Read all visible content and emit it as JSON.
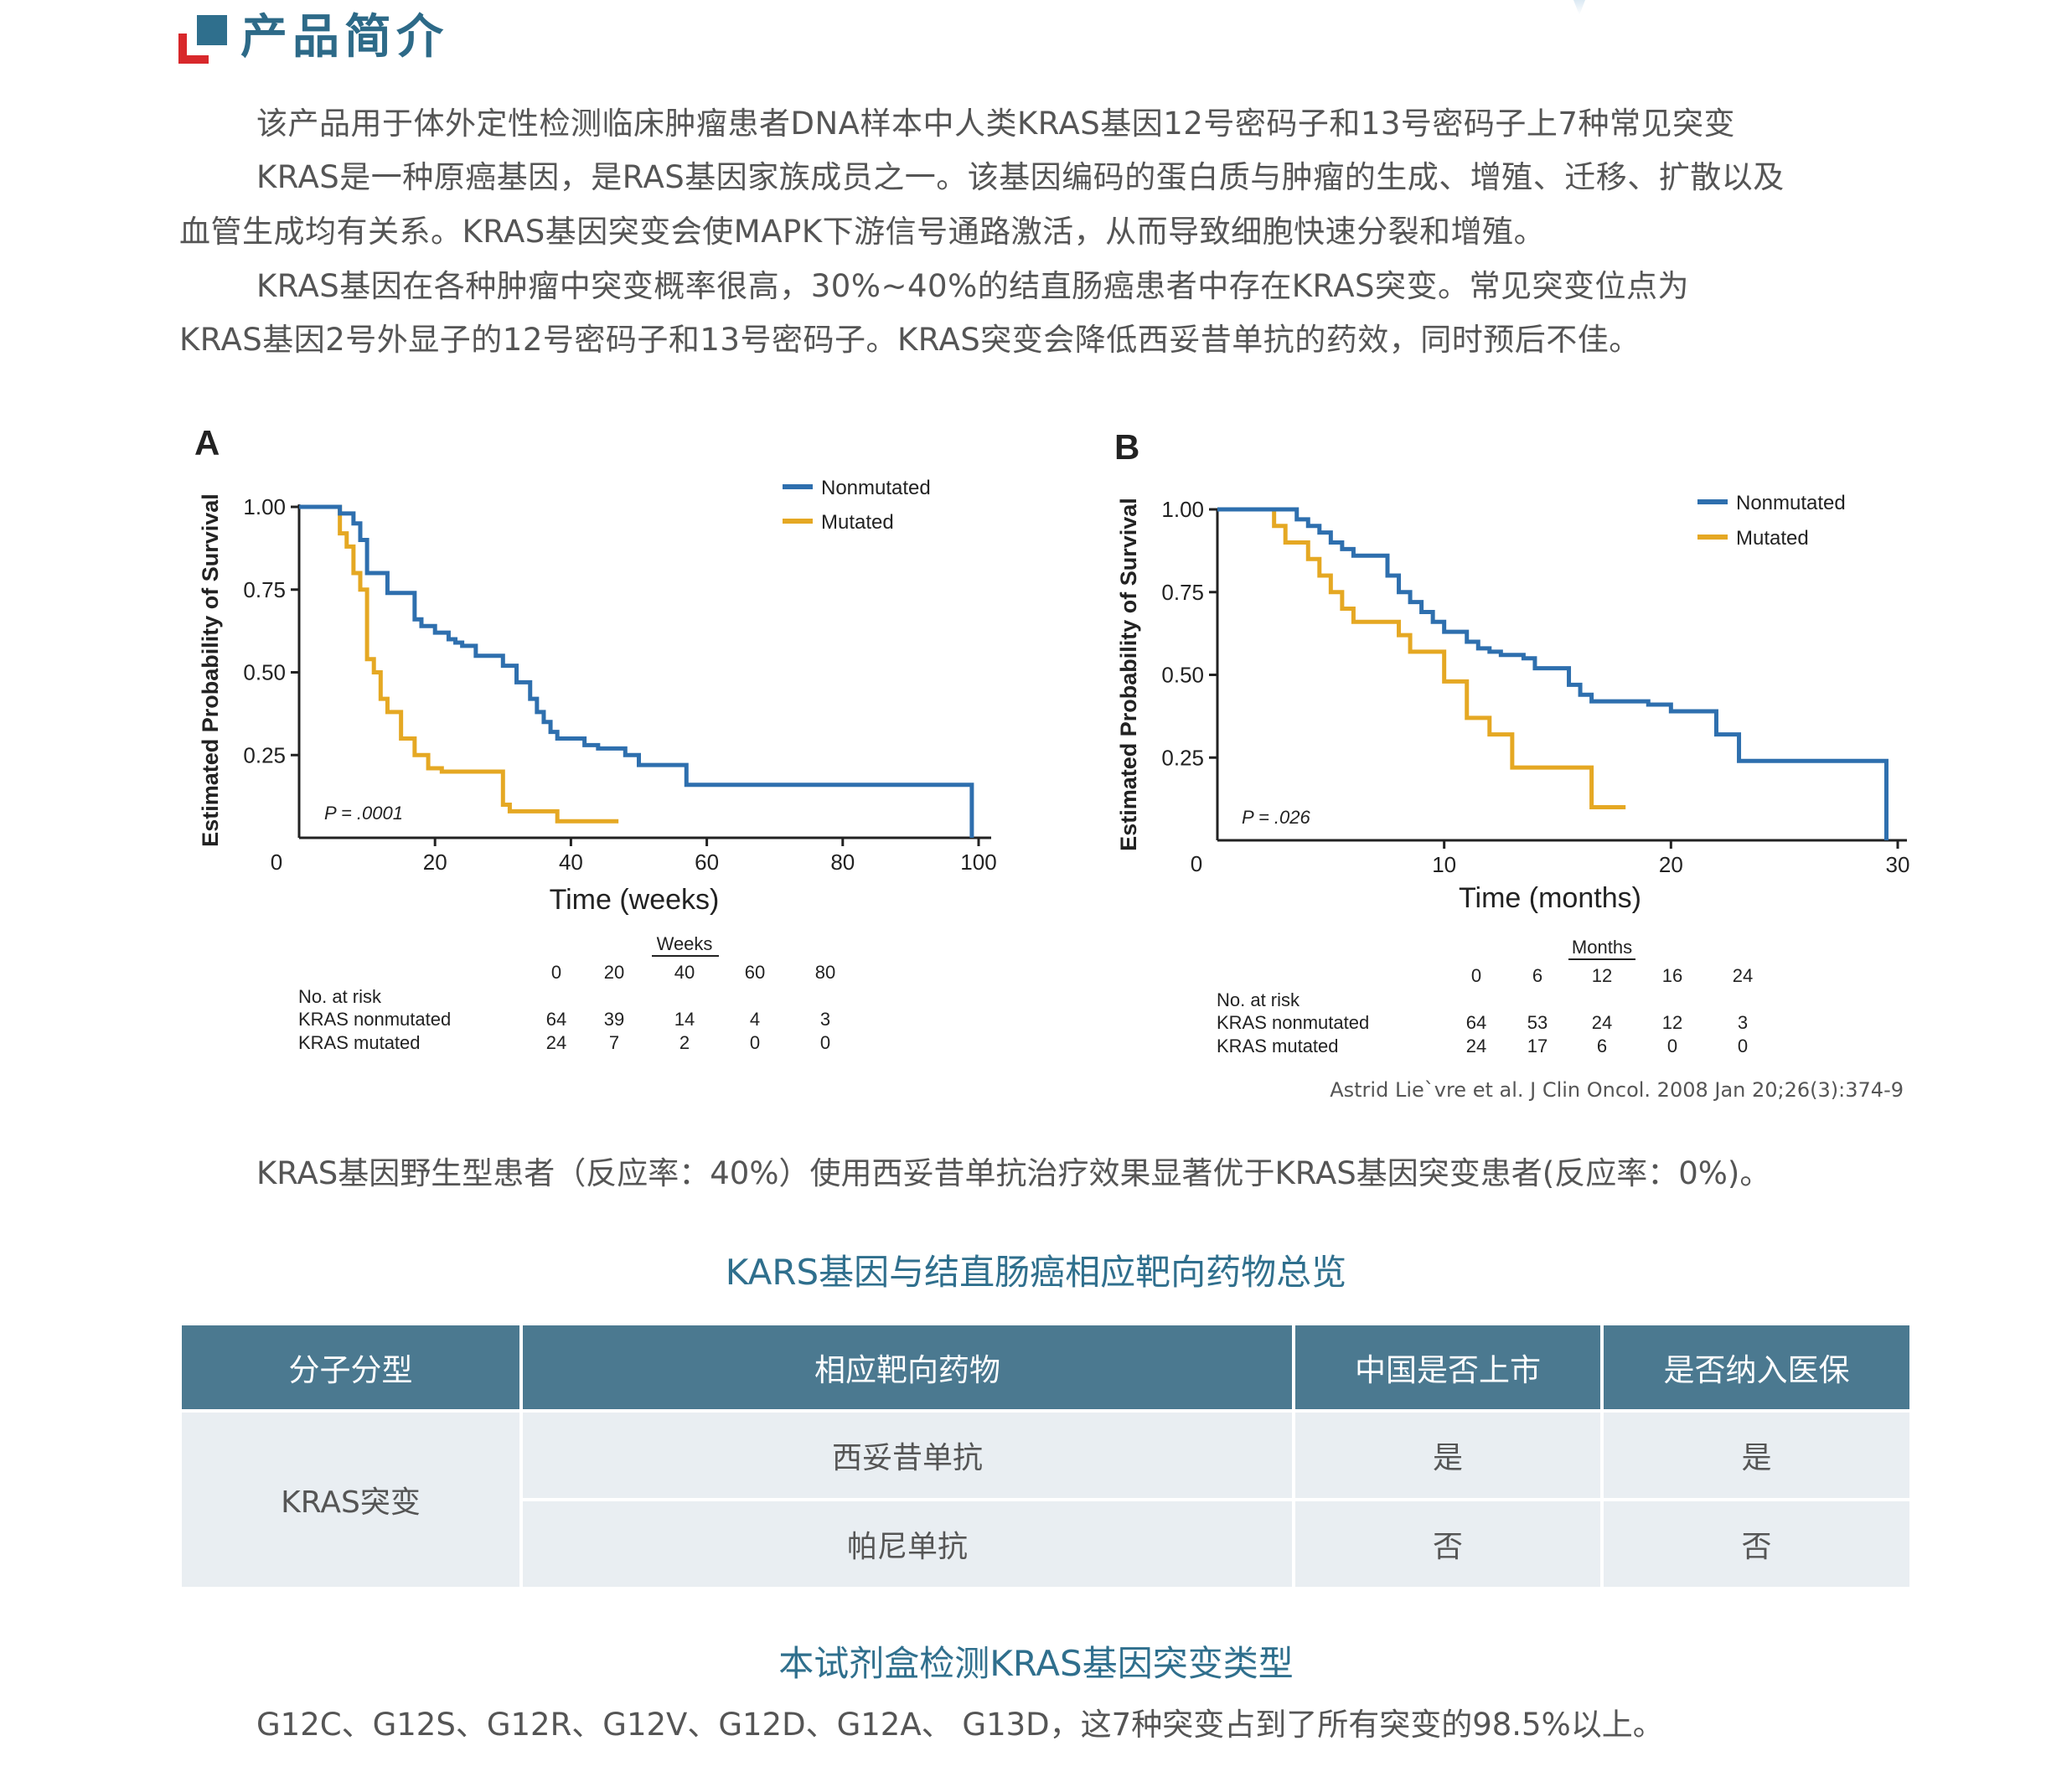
{
  "header": {
    "title": "产品简介",
    "logo_icon": "red-blue-squares-logo",
    "colors": {
      "title": "#2d6a88",
      "accent_red": "#d8282b",
      "accent_blue": "#2f6f8d"
    }
  },
  "paragraphs": {
    "p1": "该产品用于体外定性检测临床肿瘤患者DNA样本中人类KRAS基因12号密码子和13号密码子上7种常见突变",
    "p2_line1": "KRAS是一种原癌基因，是RAS基因家族成员之一。该基因编码的蛋白质与肿瘤的生成、增殖、迁移、扩散以及",
    "p2_line2": "血管生成均有关系。KRAS基因突变会使MAPK下游信号通路激活，从而导致细胞快速分裂和增殖。",
    "p3_line1": "KRAS基因在各种肿瘤中突变概率很高，30%~40%的结直肠癌患者中存在KRAS突变。常见突变位点为",
    "p3_line2": "KRAS基因2号外显子的12号密码子和13号密码子。KRAS突变会降低西妥昔单抗的药效，同时预后不佳。"
  },
  "figure": {
    "colors": {
      "nonmutated": "#2e6fae",
      "mutated": "#e5a823"
    },
    "panel_a": {
      "label": "A",
      "ylabel": "Estimated Probability of Survival",
      "xlabel": "Time (weeks)",
      "y_ticks": [
        "1.00",
        "0.75",
        "0.50",
        "0.25",
        "0"
      ],
      "x_ticks": [
        "20",
        "40",
        "60",
        "80",
        "100"
      ],
      "p_value": "P = .0001",
      "legend": {
        "nonmutated": "Nonmutated",
        "mutated": "Mutated"
      },
      "risk_table": {
        "unit": "Weeks",
        "times": [
          "0",
          "20",
          "40",
          "60",
          "80"
        ],
        "title": "No. at risk",
        "row1_label": "KRAS nonmutated",
        "row1": [
          "64",
          "39",
          "14",
          "4",
          "3"
        ],
        "row2_label": "KRAS mutated",
        "row2": [
          "24",
          "7",
          "2",
          "0",
          "0"
        ]
      }
    },
    "panel_b": {
      "label": "B",
      "ylabel": "Estimated Probability of Survival",
      "xlabel": "Time (months)",
      "y_ticks": [
        "1.00",
        "0.75",
        "0.50",
        "0.25",
        "0"
      ],
      "x_ticks": [
        "10",
        "20",
        "30"
      ],
      "p_value": "P = .026",
      "legend": {
        "nonmutated": "Nonmutated",
        "mutated": "Mutated"
      },
      "risk_table": {
        "unit": "Months",
        "times": [
          "0",
          "6",
          "12",
          "16",
          "24"
        ],
        "title": "No. at risk",
        "row1_label": "KRAS nonmutated",
        "row1": [
          "64",
          "53",
          "24",
          "12",
          "3"
        ],
        "row2_label": "KRAS mutated",
        "row2": [
          "24",
          "17",
          "6",
          "0",
          "0"
        ]
      }
    },
    "citation": "Astrid Lie`vre et al. J Clin Oncol. 2008 Jan 20;26(3):374-9"
  },
  "chart_data": [
    {
      "type": "line",
      "title": "A",
      "xlabel": "Time (weeks)",
      "ylabel": "Estimated Probability of Survival",
      "xlim": [
        0,
        100
      ],
      "ylim": [
        0,
        1
      ],
      "series": [
        {
          "name": "Nonmutated",
          "x": [
            0,
            5,
            6,
            8,
            9,
            10,
            12,
            13,
            14,
            17,
            18,
            20,
            22,
            23,
            24,
            26,
            28,
            30,
            32,
            34,
            35,
            36,
            37,
            38,
            40,
            42,
            44,
            48,
            50,
            55,
            57,
            60,
            70,
            80,
            90,
            99,
            99
          ],
          "y": [
            1.0,
            1.0,
            0.98,
            0.95,
            0.9,
            0.8,
            0.8,
            0.74,
            0.74,
            0.66,
            0.64,
            0.62,
            0.6,
            0.59,
            0.58,
            0.55,
            0.55,
            0.52,
            0.47,
            0.42,
            0.38,
            0.35,
            0.32,
            0.3,
            0.3,
            0.28,
            0.27,
            0.25,
            0.22,
            0.22,
            0.16,
            0.16,
            0.16,
            0.16,
            0.16,
            0.16,
            0
          ]
        },
        {
          "name": "Mutated",
          "x": [
            0,
            5,
            6,
            7,
            8,
            9,
            10,
            11,
            12,
            13,
            15,
            17,
            19,
            21,
            30,
            31,
            38,
            42,
            47
          ],
          "y": [
            1.0,
            1.0,
            0.92,
            0.88,
            0.8,
            0.75,
            0.54,
            0.5,
            0.42,
            0.38,
            0.3,
            0.25,
            0.21,
            0.2,
            0.1,
            0.08,
            0.05,
            0.05,
            0.05
          ]
        }
      ]
    },
    {
      "type": "line",
      "title": "B",
      "xlabel": "Time (months)",
      "ylabel": "Estimated Probability of Survival",
      "xlim": [
        0,
        30
      ],
      "ylim": [
        0,
        1
      ],
      "series": [
        {
          "name": "Nonmutated",
          "x": [
            0,
            3,
            3.5,
            4,
            4.5,
            5,
            5.5,
            6,
            7,
            7.5,
            8,
            8.5,
            9,
            9.5,
            10,
            11,
            11.5,
            12,
            12.5,
            13.5,
            14,
            15.5,
            16,
            16.5,
            17,
            18,
            19,
            20,
            21,
            22,
            22,
            23,
            25,
            27,
            29.5,
            29.5
          ],
          "y": [
            1.0,
            1.0,
            0.97,
            0.95,
            0.93,
            0.9,
            0.88,
            0.86,
            0.86,
            0.8,
            0.75,
            0.72,
            0.69,
            0.66,
            0.63,
            0.6,
            0.58,
            0.57,
            0.56,
            0.55,
            0.52,
            0.47,
            0.44,
            0.42,
            0.42,
            0.42,
            0.41,
            0.39,
            0.39,
            0.36,
            0.32,
            0.24,
            0.24,
            0.24,
            0.24,
            0
          ]
        },
        {
          "name": "Mutated",
          "x": [
            0,
            2,
            2.5,
            3,
            4,
            4.5,
            5,
            5.5,
            6,
            7,
            8,
            8.5,
            9,
            10,
            11,
            12,
            13,
            14,
            16,
            16.5,
            18
          ],
          "y": [
            1.0,
            1.0,
            0.95,
            0.9,
            0.85,
            0.8,
            0.75,
            0.7,
            0.66,
            0.66,
            0.62,
            0.57,
            0.57,
            0.48,
            0.37,
            0.32,
            0.22,
            0.22,
            0.22,
            0.1,
            0.1
          ]
        }
      ]
    }
  ],
  "result_text": "KRAS基因野生型患者（反应率：40%）使用西妥昔单抗治疗效果显著优于KRAS基因突变患者(反应率：0%)。",
  "table": {
    "title": "KARS基因与结直肠癌相应靶向药物总览",
    "headers": [
      "分子分型",
      "相应靶向药物",
      "中国是否上市",
      "是否纳入医保"
    ],
    "group_label": "KRAS突变",
    "rows": [
      {
        "drug": "西妥昔单抗",
        "listed": "是",
        "insured": "是"
      },
      {
        "drug": "帕尼单抗",
        "listed": "否",
        "insured": "否"
      }
    ],
    "colors": {
      "header_bg": "#4b7990",
      "cell_bg": "#e9eef2"
    }
  },
  "kit": {
    "title": "本试剂盒检测KRAS基因突变类型",
    "text": "G12C、G12S、G12R、G12V、G12D、G12A、 G13D，这7种突变占到了所有突变的98.5%以上。"
  }
}
